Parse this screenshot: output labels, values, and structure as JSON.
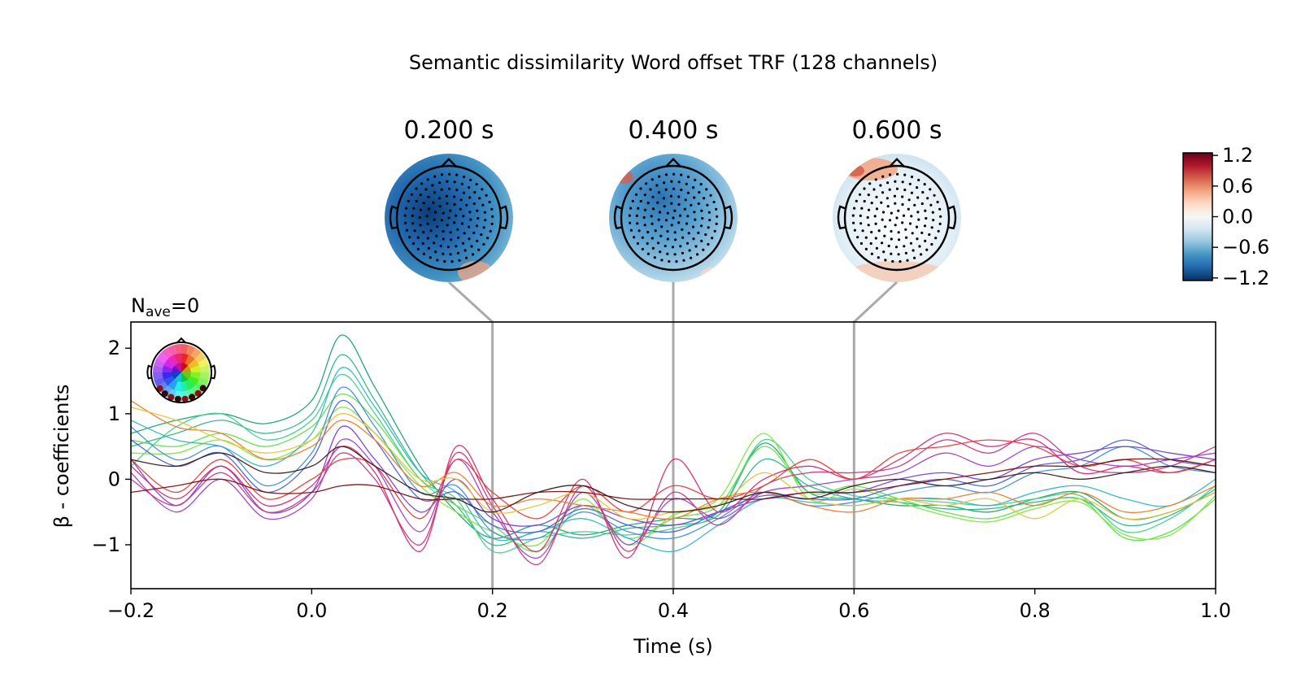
{
  "chart_data": {
    "type": "line",
    "title": "Semantic dissimilarity Word offset TRF (128 channels)",
    "xlabel": "Time (s)",
    "ylabel": "β - coefficients",
    "nave_label": {
      "base": "N",
      "sub": "ave",
      "suffix": "=0"
    },
    "xlim": [
      -0.2,
      1.0
    ],
    "ylim": [
      -1.67,
      2.4
    ],
    "x_ticks": [
      {
        "value": -0.2,
        "label": "−0.2"
      },
      {
        "value": 0.0,
        "label": "0.0"
      },
      {
        "value": 0.2,
        "label": "0.2"
      },
      {
        "value": 0.4,
        "label": "0.4"
      },
      {
        "value": 0.6,
        "label": "0.6"
      },
      {
        "value": 0.8,
        "label": "0.8"
      },
      {
        "value": 1.0,
        "label": "1.0"
      }
    ],
    "y_ticks": [
      {
        "value": -1,
        "label": "−1"
      },
      {
        "value": 0,
        "label": "0"
      },
      {
        "value": 1,
        "label": "1"
      },
      {
        "value": 2,
        "label": "2"
      }
    ],
    "grid": false,
    "channel_count": 128,
    "series": [
      {
        "color": "#1aa36f",
        "x": [
          -0.2,
          -0.15,
          -0.1,
          -0.05,
          0.0,
          0.033,
          0.07,
          0.12,
          0.16,
          0.2,
          0.25,
          0.3,
          0.35,
          0.4,
          0.45,
          0.5,
          0.55,
          0.6,
          0.65,
          0.7,
          0.75,
          0.8,
          0.85,
          0.9,
          0.95,
          1.0
        ],
        "values": [
          0.7,
          0.9,
          1.0,
          0.85,
          1.2,
          2.2,
          1.4,
          0.2,
          -0.5,
          -0.9,
          -0.7,
          -0.85,
          -0.7,
          -0.6,
          -0.5,
          0.55,
          -0.2,
          -0.3,
          -0.4,
          -0.4,
          -0.5,
          -0.3,
          -0.2,
          -0.6,
          -0.5,
          -0.2
        ]
      },
      {
        "color": "#2eb585",
        "x": [
          -0.2,
          -0.15,
          -0.1,
          -0.05,
          0.0,
          0.033,
          0.07,
          0.12,
          0.16,
          0.2,
          0.25,
          0.3,
          0.35,
          0.4,
          0.45,
          0.5,
          0.55,
          0.6,
          0.65,
          0.7,
          0.75,
          0.8,
          0.85,
          0.9,
          0.95,
          1.0
        ],
        "values": [
          0.5,
          0.7,
          0.9,
          0.7,
          1.0,
          1.9,
          1.2,
          0.1,
          -0.4,
          -1.0,
          -0.8,
          -0.9,
          -0.75,
          -0.7,
          -0.55,
          0.3,
          -0.1,
          -0.3,
          -0.35,
          -0.45,
          -0.45,
          -0.35,
          -0.3,
          -0.7,
          -0.55,
          -0.15
        ]
      },
      {
        "color": "#3fd18c",
        "x": [
          -0.2,
          -0.15,
          -0.1,
          -0.05,
          0.0,
          0.033,
          0.07,
          0.12,
          0.16,
          0.2,
          0.25,
          0.3,
          0.35,
          0.4,
          0.45,
          0.5,
          0.55,
          0.6,
          0.65,
          0.7,
          0.75,
          0.8,
          0.85,
          0.9,
          0.95,
          1.0
        ],
        "values": [
          0.2,
          0.8,
          1.0,
          0.6,
          0.9,
          1.6,
          1.0,
          0.0,
          -0.3,
          -1.1,
          -0.9,
          -0.8,
          -0.85,
          -0.75,
          -0.5,
          0.6,
          0.0,
          -0.25,
          -0.3,
          -0.35,
          -0.4,
          -0.3,
          -0.25,
          -0.8,
          -0.6,
          -0.1
        ]
      },
      {
        "color": "#5be04a",
        "x": [
          -0.2,
          -0.15,
          -0.1,
          -0.05,
          0.0,
          0.033,
          0.07,
          0.12,
          0.16,
          0.2,
          0.25,
          0.3,
          0.35,
          0.4,
          0.45,
          0.5,
          0.55,
          0.6,
          0.65,
          0.7,
          0.75,
          0.8,
          0.85,
          0.9,
          0.95,
          1.0
        ],
        "values": [
          0.6,
          0.5,
          0.7,
          0.5,
          0.8,
          1.3,
          0.9,
          0.0,
          -0.4,
          -0.7,
          -1.1,
          -0.4,
          -0.9,
          -0.6,
          -0.4,
          0.5,
          -0.2,
          -0.1,
          -0.3,
          -0.5,
          -0.6,
          -0.4,
          -0.3,
          -0.9,
          -0.8,
          -0.3
        ]
      },
      {
        "color": "#7be83a",
        "x": [
          -0.2,
          -0.15,
          -0.1,
          -0.05,
          0.0,
          0.033,
          0.07,
          0.12,
          0.16,
          0.2,
          0.25,
          0.3,
          0.35,
          0.4,
          0.45,
          0.5,
          0.55,
          0.6,
          0.65,
          0.7,
          0.75,
          0.8,
          0.85,
          0.9,
          0.95,
          1.0
        ],
        "values": [
          0.4,
          0.4,
          0.6,
          0.3,
          0.6,
          1.1,
          0.7,
          -0.1,
          -0.5,
          -0.8,
          -1.0,
          -0.3,
          -1.0,
          -0.55,
          -0.3,
          0.7,
          -0.3,
          -0.15,
          -0.35,
          -0.55,
          -0.65,
          -0.45,
          -0.35,
          -0.85,
          -0.85,
          -0.25
        ]
      },
      {
        "color": "#2fb7c9",
        "x": [
          -0.2,
          -0.15,
          -0.1,
          -0.05,
          0.0,
          0.033,
          0.07,
          0.12,
          0.16,
          0.2,
          0.25,
          0.3,
          0.35,
          0.4,
          0.45,
          0.5,
          0.55,
          0.6,
          0.65,
          0.7,
          0.75,
          0.8,
          0.85,
          0.9,
          0.95,
          1.0
        ],
        "values": [
          0.9,
          0.6,
          0.5,
          0.2,
          0.7,
          1.7,
          1.1,
          0.1,
          -0.2,
          -0.9,
          -0.8,
          -0.6,
          -0.9,
          -1.1,
          -0.7,
          -0.3,
          -0.35,
          -0.4,
          -0.3,
          -0.3,
          -0.4,
          -0.2,
          -0.1,
          -0.3,
          -0.4,
          0.0
        ]
      },
      {
        "color": "#3f8ee0",
        "x": [
          -0.2,
          -0.15,
          -0.1,
          -0.05,
          0.0,
          0.033,
          0.07,
          0.12,
          0.16,
          0.2,
          0.25,
          0.3,
          0.35,
          0.4,
          0.45,
          0.5,
          0.55,
          0.6,
          0.65,
          0.7,
          0.75,
          0.8,
          0.85,
          0.9,
          0.95,
          1.0
        ],
        "values": [
          0.8,
          0.3,
          0.5,
          -0.1,
          0.4,
          1.4,
          0.8,
          -0.2,
          -0.1,
          -0.8,
          -0.9,
          -0.5,
          -0.8,
          -0.9,
          -0.6,
          -0.2,
          -0.4,
          -0.35,
          -0.2,
          -0.1,
          -0.2,
          0.1,
          0.2,
          0.5,
          0.2,
          0.1
        ]
      },
      {
        "color": "#4b5fe0",
        "x": [
          -0.2,
          -0.15,
          -0.1,
          -0.05,
          0.0,
          0.033,
          0.07,
          0.12,
          0.16,
          0.2,
          0.25,
          0.3,
          0.35,
          0.4,
          0.45,
          0.5,
          0.55,
          0.6,
          0.65,
          0.7,
          0.75,
          0.8,
          0.85,
          0.9,
          0.95,
          1.0
        ],
        "values": [
          0.6,
          0.2,
          0.4,
          -0.2,
          0.3,
          1.2,
          0.6,
          -0.3,
          -0.2,
          -0.7,
          -0.8,
          -0.45,
          -0.7,
          -0.8,
          -0.5,
          -0.25,
          -0.3,
          -0.3,
          -0.1,
          0.0,
          -0.1,
          0.2,
          0.3,
          0.6,
          0.3,
          0.2
        ]
      },
      {
        "color": "#7a3fd8",
        "x": [
          -0.2,
          -0.15,
          -0.1,
          -0.05,
          0.0,
          0.033,
          0.07,
          0.12,
          0.16,
          0.2,
          0.25,
          0.3,
          0.35,
          0.4,
          0.45,
          0.5,
          0.55,
          0.6,
          0.65,
          0.7,
          0.75,
          0.8,
          0.85,
          0.9,
          0.95,
          1.0
        ],
        "values": [
          0.3,
          -0.4,
          0.2,
          -0.5,
          -0.2,
          0.8,
          0.3,
          -0.5,
          0.0,
          -0.6,
          -0.7,
          -0.4,
          -0.6,
          -0.7,
          -0.5,
          -0.3,
          -0.2,
          -0.2,
          0.0,
          0.1,
          0.0,
          0.3,
          0.4,
          0.5,
          0.4,
          0.3
        ]
      },
      {
        "color": "#a33ec8",
        "x": [
          -0.2,
          -0.15,
          -0.1,
          -0.05,
          0.0,
          0.033,
          0.07,
          0.12,
          0.16,
          0.2,
          0.25,
          0.3,
          0.35,
          0.4,
          0.45,
          0.5,
          0.55,
          0.6,
          0.65,
          0.7,
          0.75,
          0.8,
          0.85,
          0.9,
          0.95,
          1.0
        ],
        "values": [
          0.1,
          -0.5,
          0.0,
          -0.6,
          -0.3,
          0.6,
          0.2,
          -0.8,
          0.3,
          -0.5,
          -1.2,
          -0.2,
          -1.0,
          -0.3,
          -0.6,
          -0.2,
          -0.1,
          0.0,
          0.1,
          0.4,
          0.2,
          0.5,
          0.3,
          0.2,
          0.3,
          0.4
        ]
      },
      {
        "color": "#c8338a",
        "x": [
          -0.2,
          -0.15,
          -0.1,
          -0.05,
          0.0,
          0.033,
          0.07,
          0.12,
          0.16,
          0.2,
          0.25,
          0.3,
          0.35,
          0.4,
          0.45,
          0.5,
          0.55,
          0.6,
          0.65,
          0.7,
          0.75,
          0.8,
          0.85,
          0.9,
          0.95,
          1.0
        ],
        "values": [
          0.0,
          -0.4,
          0.1,
          -0.5,
          -0.2,
          0.4,
          0.0,
          -1.0,
          0.4,
          -0.4,
          -1.3,
          -0.1,
          -1.1,
          -0.2,
          -0.7,
          -0.1,
          0.1,
          0.1,
          0.2,
          0.6,
          0.4,
          0.7,
          0.2,
          0.1,
          0.2,
          0.5
        ]
      },
      {
        "color": "#d62b6c",
        "x": [
          -0.2,
          -0.15,
          -0.1,
          -0.05,
          0.0,
          0.033,
          0.07,
          0.12,
          0.16,
          0.2,
          0.25,
          0.3,
          0.35,
          0.4,
          0.45,
          0.5,
          0.55,
          0.6,
          0.65,
          0.7,
          0.75,
          0.8,
          0.85,
          0.9,
          0.95,
          1.0
        ],
        "values": [
          0.2,
          -0.3,
          0.2,
          -0.4,
          -0.1,
          0.5,
          0.1,
          -1.1,
          0.5,
          -0.3,
          -1.1,
          0.0,
          -1.2,
          0.3,
          -0.5,
          0.0,
          0.2,
          0.0,
          0.3,
          0.7,
          0.5,
          0.6,
          0.1,
          0.2,
          0.1,
          0.3
        ]
      },
      {
        "color": "#e63a3a",
        "x": [
          -0.2,
          -0.15,
          -0.1,
          -0.05,
          0.0,
          0.033,
          0.07,
          0.12,
          0.16,
          0.2,
          0.25,
          0.3,
          0.35,
          0.4,
          0.45,
          0.5,
          0.55,
          0.6,
          0.65,
          0.7,
          0.75,
          0.8,
          0.85,
          0.9,
          0.95,
          1.0
        ],
        "values": [
          0.3,
          -0.2,
          0.3,
          -0.3,
          0.0,
          0.3,
          0.2,
          -0.6,
          0.3,
          -0.2,
          -0.6,
          -0.1,
          -0.5,
          -0.1,
          -0.3,
          -0.1,
          0.3,
          0.0,
          0.4,
          0.5,
          0.6,
          0.5,
          0.2,
          0.3,
          0.1,
          0.3
        ]
      },
      {
        "color": "#f07b2a",
        "x": [
          -0.2,
          -0.15,
          -0.1,
          -0.05,
          0.0,
          0.033,
          0.07,
          0.12,
          0.16,
          0.2,
          0.25,
          0.3,
          0.35,
          0.4,
          0.45,
          0.5,
          0.55,
          0.6,
          0.65,
          0.7,
          0.75,
          0.8,
          0.85,
          0.9,
          0.95,
          1.0
        ],
        "values": [
          1.2,
          0.8,
          0.7,
          0.3,
          0.5,
          0.9,
          0.6,
          -0.1,
          0.1,
          -0.4,
          -0.3,
          -0.4,
          -0.5,
          -0.6,
          -0.3,
          -0.2,
          -0.4,
          -0.5,
          -0.3,
          -0.3,
          -0.2,
          -0.4,
          -0.2,
          -0.5,
          -0.4,
          -0.1
        ]
      },
      {
        "color": "#e8c23a",
        "x": [
          -0.2,
          -0.15,
          -0.1,
          -0.05,
          0.0,
          0.033,
          0.07,
          0.12,
          0.16,
          0.2,
          0.25,
          0.3,
          0.35,
          0.4,
          0.45,
          0.5,
          0.55,
          0.6,
          0.65,
          0.7,
          0.75,
          0.8,
          0.85,
          0.9,
          0.95,
          1.0
        ],
        "values": [
          1.1,
          0.9,
          0.6,
          0.4,
          0.6,
          1.0,
          0.7,
          0.0,
          0.0,
          -0.5,
          -0.4,
          -0.2,
          -0.6,
          -0.5,
          -0.4,
          0.1,
          -0.3,
          -0.4,
          -0.3,
          -0.4,
          -0.3,
          -0.6,
          -0.3,
          -0.6,
          -0.5,
          -0.2
        ]
      },
      {
        "color": "#7a1010",
        "x": [
          -0.2,
          -0.15,
          -0.1,
          -0.05,
          0.0,
          0.033,
          0.07,
          0.12,
          0.16,
          0.2,
          0.25,
          0.3,
          0.35,
          0.4,
          0.45,
          0.5,
          0.55,
          0.6,
          0.65,
          0.7,
          0.75,
          0.8,
          0.85,
          0.9,
          0.95,
          1.0
        ],
        "values": [
          -0.2,
          -0.1,
          0.0,
          -0.2,
          -0.2,
          -0.1,
          -0.1,
          -0.3,
          -0.3,
          -0.3,
          -0.2,
          -0.2,
          -0.3,
          -0.3,
          -0.3,
          -0.3,
          -0.2,
          -0.2,
          -0.1,
          0.0,
          0.1,
          0.2,
          0.2,
          0.3,
          0.3,
          0.2
        ]
      },
      {
        "color": "#3a1a1a",
        "x": [
          -0.2,
          -0.15,
          -0.1,
          -0.05,
          0.0,
          0.033,
          0.07,
          0.12,
          0.16,
          0.2,
          0.25,
          0.3,
          0.35,
          0.4,
          0.45,
          0.5,
          0.55,
          0.6,
          0.65,
          0.7,
          0.75,
          0.8,
          0.85,
          0.9,
          0.95,
          1.0
        ],
        "values": [
          0.3,
          0.2,
          0.4,
          0.1,
          0.2,
          0.5,
          0.2,
          -0.2,
          -0.3,
          -0.5,
          -0.2,
          -0.1,
          -0.4,
          -0.5,
          -0.4,
          -0.2,
          -0.3,
          -0.1,
          0.0,
          -0.1,
          0.0,
          0.1,
          0.0,
          0.1,
          0.2,
          0.1
        ]
      }
    ],
    "topomaps": [
      {
        "time_label": "0.200 s",
        "time": 0.2
      },
      {
        "time_label": "0.400 s",
        "time": 0.4
      },
      {
        "time_label": "0.600 s",
        "time": 0.6
      }
    ],
    "colorbar": {
      "range": [
        -1.25,
        1.25
      ],
      "ticks": [
        {
          "value": 1.2,
          "label": "1.2"
        },
        {
          "value": 0.6,
          "label": "0.6"
        },
        {
          "value": 0.0,
          "label": "0.0"
        },
        {
          "value": -0.6,
          "label": "−0.6"
        },
        {
          "value": -1.2,
          "label": "−1.2"
        }
      ],
      "colors": [
        "#053061",
        "#2166ac",
        "#4393c3",
        "#92c5de",
        "#d1e5f0",
        "#f7f7f7",
        "#fddbc7",
        "#f4a582",
        "#d6604d",
        "#b2182b",
        "#67001f"
      ]
    },
    "marker_color": "#aaaaaa"
  }
}
